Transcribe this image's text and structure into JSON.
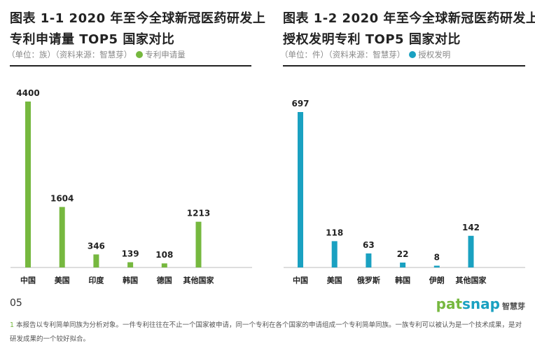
{
  "chart_data": [
    {
      "type": "bar",
      "title_line1": "图表 1-1 2020 年至今全球新冠医药研发上",
      "title_line2": "专利申请量 TOP5 国家对比",
      "unit": "（单位：族）",
      "source": "（资料来源：智慧芽）",
      "legend": "专利申请量",
      "color": "#76b83f",
      "categories": [
        "中国",
        "美国",
        "印度",
        "韩国",
        "德国",
        "其他国家"
      ],
      "values": [
        4400,
        1604,
        346,
        139,
        108,
        1213
      ],
      "ylim": [
        0,
        4400
      ]
    },
    {
      "type": "bar",
      "title_line1": "图表 1-2 2020 年至今全球新冠医药研发上",
      "title_line2": "授权发明专利 TOP5 国家对比",
      "unit": "（单位：件）",
      "source": "（资料来源：智慧芽）",
      "legend": "授权发明",
      "color": "#1aa1c1",
      "categories": [
        "中国",
        "美国",
        "俄罗斯",
        "韩国",
        "伊朗",
        "其他国家"
      ],
      "values": [
        697,
        118,
        63,
        22,
        8,
        142
      ],
      "ylim": [
        0,
        697
      ]
    }
  ],
  "page_number": "05",
  "logo": {
    "brand_a": "pat",
    "brand_b": "snap",
    "cn": "智慧芽",
    "color_a": "#76b83f",
    "color_b": "#1aa1c1"
  },
  "footnote": {
    "num": "1",
    "text": "本报告以专利简单同族为分析对象。一件专利往往在不止一个国家被申请，同一个专利在各个国家的申请组成一个专利简单同族。一族专利可以被认为是一个技术成果，是对研发成果的一个较好拟合。"
  }
}
